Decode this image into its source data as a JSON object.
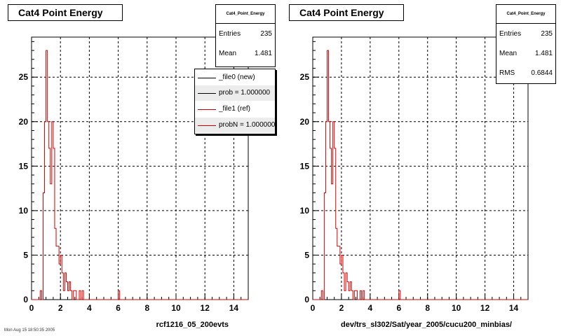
{
  "footer_text": "Mon Aug 15 18:50:35 2005",
  "chart_data": [
    {
      "type": "bar",
      "title": "Cat4 Point Energy",
      "xlabel": "rcf1216_05_200evts",
      "ylabel": "",
      "xlim": [
        0,
        15
      ],
      "ylim": [
        0,
        29.5
      ],
      "grid": true,
      "xticks": [
        "0",
        "2",
        "4",
        "6",
        "8",
        "10",
        "12",
        "14"
      ],
      "yticks": [
        "0",
        "5",
        "10",
        "15",
        "20",
        "25"
      ],
      "stats": {
        "title": "Cat4_Point_Energy",
        "rows": [
          {
            "label": "Entries",
            "value": "235"
          },
          {
            "label": "Mean",
            "value": "1.481"
          }
        ]
      },
      "legend": {
        "position": "top-right",
        "entries": [
          {
            "label": "_file0 (new)",
            "color": "#000000"
          },
          {
            "label": "prob = 1.000000",
            "color": "#000000"
          },
          {
            "label": "_file1 (ref)",
            "color": "#d40000"
          },
          {
            "label": "probN = 1.000000",
            "color": "#d40000"
          }
        ]
      },
      "series": [
        {
          "name": "_file0 (new)",
          "color": "#000000"
        },
        {
          "name": "_file1 (ref)",
          "color": "#d40000"
        }
      ],
      "bin_width": 0.1,
      "bin_start": 0,
      "values": [
        0,
        0,
        0,
        0,
        0,
        0,
        1,
        0,
        12,
        20,
        28,
        20,
        17,
        13,
        20,
        17,
        8,
        6,
        6,
        4,
        5,
        3,
        1,
        3,
        2,
        1,
        2,
        1,
        0,
        1,
        1,
        0,
        0,
        1,
        0,
        1,
        0,
        0,
        0,
        0,
        0,
        0,
        0,
        0,
        0,
        0,
        0,
        0,
        0,
        0,
        0,
        0,
        0,
        0,
        0,
        0,
        0,
        0,
        0,
        0,
        1
      ]
    },
    {
      "type": "bar",
      "title": "Cat4 Point Energy",
      "xlabel": "dev/trs_sl302/Sat/year_2005/cucu200_minbias/",
      "ylabel": "",
      "xlim": [
        0,
        15
      ],
      "ylim": [
        0,
        29.5
      ],
      "grid": true,
      "xticks": [
        "0",
        "2",
        "4",
        "6",
        "8",
        "10",
        "12",
        "14"
      ],
      "yticks": [
        "0",
        "5",
        "10",
        "15",
        "20",
        "25"
      ],
      "stats": {
        "title": "Cat4_Point_Energy",
        "rows": [
          {
            "label": "Entries",
            "value": "235"
          },
          {
            "label": "Mean",
            "value": "1.481"
          },
          {
            "label": "RMS",
            "value": "0.6844"
          }
        ]
      },
      "series": [
        {
          "name": "",
          "color": "#d40000"
        }
      ],
      "bin_width": 0.1,
      "bin_start": 0,
      "values": [
        0,
        0,
        0,
        0,
        0,
        0,
        1,
        0,
        12,
        20,
        28,
        20,
        17,
        13,
        20,
        17,
        8,
        6,
        6,
        4,
        5,
        3,
        1,
        3,
        2,
        1,
        2,
        1,
        0,
        1,
        1,
        0,
        0,
        1,
        0,
        1,
        0,
        0,
        0,
        0,
        0,
        0,
        0,
        0,
        0,
        0,
        0,
        0,
        0,
        0,
        0,
        0,
        0,
        0,
        0,
        0,
        0,
        0,
        0,
        0,
        1
      ]
    }
  ]
}
